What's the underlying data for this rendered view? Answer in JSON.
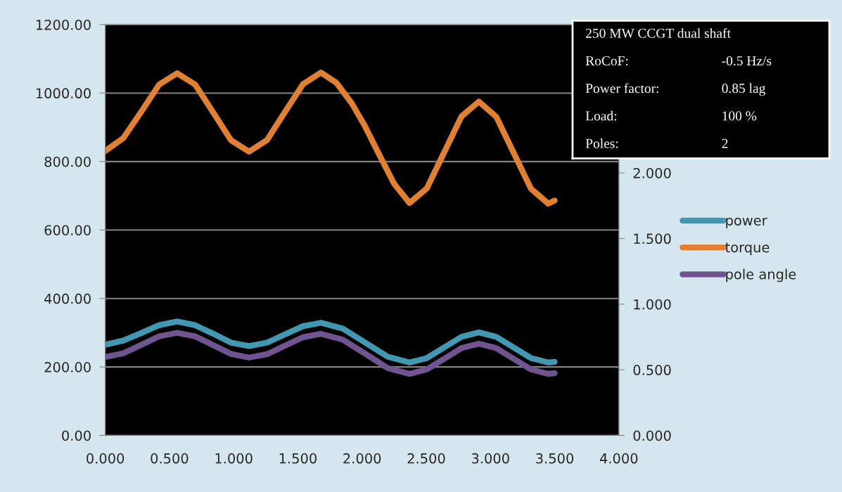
{
  "chart_data": {
    "type": "line",
    "series": [
      {
        "name": "power",
        "color": "#4198b0",
        "x": [
          0.0,
          0.14,
          0.28,
          0.42,
          0.56,
          0.7,
          0.84,
          0.98,
          1.12,
          1.26,
          1.4,
          1.54,
          1.68,
          1.85,
          2.025,
          2.2,
          2.37,
          2.505,
          2.64,
          2.775,
          2.91,
          3.045,
          3.18,
          3.315,
          3.45,
          3.5
        ],
        "values": [
          265,
          277,
          299,
          322,
          333,
          322,
          297,
          271,
          261,
          271,
          295,
          319,
          329,
          312,
          271,
          230,
          213,
          226,
          257,
          288,
          301,
          288,
          257,
          226,
          213,
          215
        ]
      },
      {
        "name": "torque",
        "color": "#e08035",
        "x": [
          0.0,
          0.14,
          0.28,
          0.42,
          0.56,
          0.7,
          0.84,
          0.98,
          1.12,
          1.26,
          1.4,
          1.54,
          1.68,
          1.8,
          1.92,
          2.02,
          2.12,
          2.25,
          2.37,
          2.505,
          2.64,
          2.775,
          2.91,
          3.045,
          3.18,
          3.315,
          3.45,
          3.5
        ],
        "values": [
          831,
          868,
          945,
          1025,
          1058,
          1025,
          944,
          862,
          829,
          863,
          945,
          1026,
          1060,
          1030,
          970,
          905,
          830,
          735,
          679,
          722,
          827,
          932,
          975,
          931,
          826,
          721,
          677,
          686
        ]
      },
      {
        "name": "pole angle",
        "color": "#70548f",
        "axis": "y2",
        "x": [
          0.0,
          0.14,
          0.28,
          0.42,
          0.56,
          0.7,
          0.84,
          0.98,
          1.12,
          1.26,
          1.4,
          1.54,
          1.68,
          1.85,
          2.025,
          2.2,
          2.37,
          2.505,
          2.64,
          2.775,
          2.91,
          3.045,
          3.18,
          3.315,
          3.45,
          3.5
        ],
        "values": [
          0.598,
          0.625,
          0.69,
          0.755,
          0.782,
          0.755,
          0.688,
          0.621,
          0.593,
          0.619,
          0.684,
          0.748,
          0.774,
          0.73,
          0.622,
          0.513,
          0.469,
          0.503,
          0.584,
          0.665,
          0.699,
          0.665,
          0.584,
          0.503,
          0.469,
          0.474
        ]
      }
    ],
    "xlim": [
      0,
      4
    ],
    "xticks": [
      {
        "value": 0,
        "label": "0.000"
      },
      {
        "value": 0.5,
        "label": "0.500"
      },
      {
        "value": 1,
        "label": "1.000"
      },
      {
        "value": 1.5,
        "label": "1.500"
      },
      {
        "value": 2,
        "label": "2.000"
      },
      {
        "value": 2.5,
        "label": "2.500"
      },
      {
        "value": 3,
        "label": "3.000"
      },
      {
        "value": 3.5,
        "label": "3.500"
      },
      {
        "value": 4,
        "label": "4.000"
      }
    ],
    "ylim": [
      0,
      1200
    ],
    "yticks": [
      {
        "value": 0,
        "label": "0.00"
      },
      {
        "value": 200,
        "label": "200.00"
      },
      {
        "value": 400,
        "label": "400.00"
      },
      {
        "value": 600,
        "label": "600.00"
      },
      {
        "value": 800,
        "label": "800.00"
      },
      {
        "value": 1000,
        "label": "1000.00"
      },
      {
        "value": 1200,
        "label": "1200.00"
      }
    ],
    "y2lim": [
      0,
      3.13
    ],
    "y2ticks": [
      {
        "value": 0,
        "label": "0.000"
      },
      {
        "value": 0.5,
        "label": "0.500"
      },
      {
        "value": 1,
        "label": "1.000"
      },
      {
        "value": 1.5,
        "label": "1.500"
      },
      {
        "value": 2,
        "label": "2.000"
      }
    ],
    "grid": "y",
    "legend": "right",
    "marker": "none",
    "line_style": "solid",
    "annotations": [
      "250 MW CCGT dual shaft",
      "RoCoF:",
      "-0.5 Hz/s",
      "Power factor:",
      "0.85 lag",
      "Load:",
      "100 %",
      "Poles:",
      "2"
    ]
  }
}
